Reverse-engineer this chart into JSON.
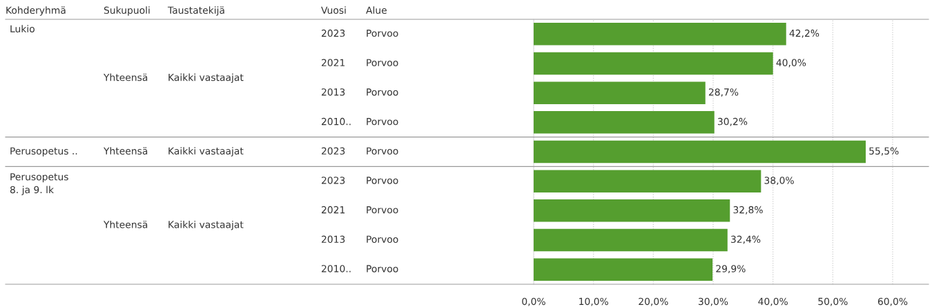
{
  "chart_data": {
    "type": "bar",
    "orientation": "horizontal",
    "categories": [
      "2023 Porvoo",
      "2021 Porvoo",
      "2013 Porvoo",
      "2010.. Porvoo",
      "2023 Porvoo",
      "2023 Porvoo",
      "2021 Porvoo",
      "2013 Porvoo",
      "2010.. Porvoo"
    ],
    "values": [
      42.2,
      40.0,
      28.7,
      30.2,
      55.5,
      38.0,
      32.8,
      32.4,
      29.9
    ],
    "value_labels": [
      "42,2%",
      "40,0%",
      "28,7%",
      "30,2%",
      "55,5%",
      "38,0%",
      "32,8%",
      "32,4%",
      "29,9%"
    ],
    "color": "#559e2f",
    "xlim": [
      0,
      66
    ],
    "xticks": [
      {
        "value": 0,
        "label": "0,0%"
      },
      {
        "value": 10,
        "label": "10,0%"
      },
      {
        "value": 20,
        "label": "20,0%"
      },
      {
        "value": 30,
        "label": "30,0%"
      },
      {
        "value": 40,
        "label": "40,0%"
      },
      {
        "value": 50,
        "label": "50,0%"
      },
      {
        "value": 60,
        "label": "60,0%"
      }
    ],
    "grid": "x",
    "annotations": [
      "Kohderyhmä",
      "Sukupuoli",
      "Taustatekijä",
      "Vuosi",
      "Alue",
      "Lukio",
      "Yhteensä",
      "Kaikki vastaajat",
      "Perusopetus ..",
      "Yhteensä",
      "Kaikki vastaajat",
      "Perusopetus\n8. ja 9. lk",
      "Yhteensä",
      "Kaikki vastaajat"
    ]
  }
}
